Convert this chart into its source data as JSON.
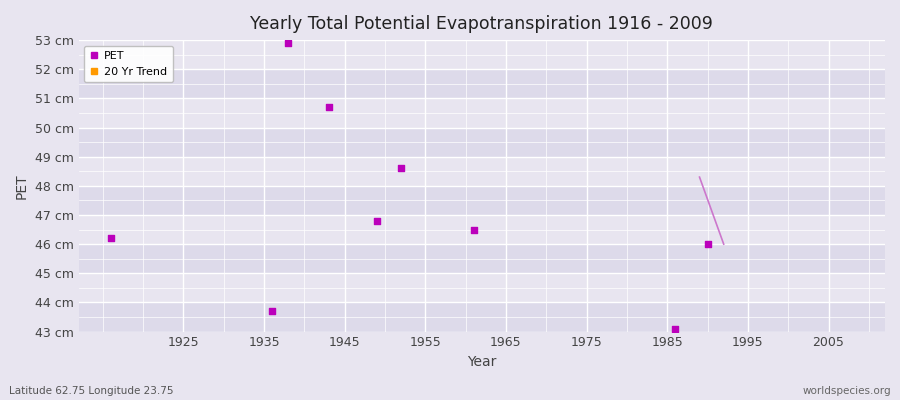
{
  "title": "Yearly Total Potential Evapotranspiration 1916 - 2009",
  "xlabel": "Year",
  "ylabel": "PET",
  "bottom_left_label": "Latitude 62.75 Longitude 23.75",
  "bottom_right_label": "worldspecies.org",
  "fig_bg_color": "#e8e5f0",
  "band_colors": [
    "#dddaea",
    "#e8e5f0"
  ],
  "grid_color": "#ffffff",
  "xmin": 1912,
  "xmax": 2012,
  "ymin": 43,
  "ymax": 53,
  "ytick_vals": [
    43,
    44,
    45,
    46,
    47,
    48,
    49,
    50,
    51,
    52,
    53
  ],
  "ytick_labels": [
    "43 cm",
    "44 cm",
    "45 cm",
    "46 cm",
    "47 cm",
    "48 cm",
    "49 cm",
    "50 cm",
    "51 cm",
    "52 cm",
    "53 cm"
  ],
  "xtick_vals": [
    1925,
    1935,
    1945,
    1955,
    1965,
    1975,
    1985,
    1995,
    2005
  ],
  "pet_color": "#bb00bb",
  "trend_color": "#cc77cc",
  "pet_marker_size": 16,
  "pet_data": [
    [
      1916,
      46.2
    ],
    [
      1936,
      43.7
    ],
    [
      1938,
      52.9
    ],
    [
      1943,
      50.7
    ],
    [
      1949,
      46.8
    ],
    [
      1952,
      48.6
    ],
    [
      1961,
      46.5
    ],
    [
      1986,
      43.1
    ],
    [
      1990,
      46.0
    ]
  ],
  "trend_data": [
    [
      1989,
      48.3
    ],
    [
      1992,
      46.0
    ]
  ],
  "legend_pet_color": "#bb00bb",
  "legend_trend_color": "#ff9900"
}
